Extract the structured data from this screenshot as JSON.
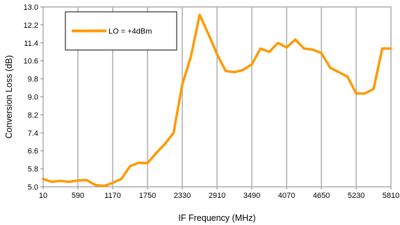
{
  "chart_data": {
    "type": "line",
    "xlabel": "IF Frequency (MHz)",
    "ylabel": "Conversion Loss (dB)",
    "xlim": [
      10,
      5810
    ],
    "ylim": [
      5.0,
      13.0
    ],
    "x_ticks": [
      "10",
      "590",
      "1170",
      "1750",
      "2330",
      "2910",
      "3490",
      "4070",
      "4650",
      "5230",
      "5810"
    ],
    "y_ticks": [
      "5.0",
      "5.8",
      "6.6",
      "7.4",
      "8.2",
      "9.0",
      "9.8",
      "10.6",
      "11.4",
      "12.2",
      "13.0"
    ],
    "grid": "vertical",
    "legend_position": "top-left",
    "series": [
      {
        "name": "LO = +4dBm",
        "color": "#FF9900",
        "x": [
          10,
          155,
          300,
          445,
          590,
          735,
          880,
          1025,
          1170,
          1315,
          1460,
          1605,
          1750,
          1895,
          2040,
          2185,
          2330,
          2475,
          2620,
          2765,
          2910,
          3055,
          3200,
          3345,
          3490,
          3635,
          3780,
          3925,
          4070,
          4215,
          4360,
          4505,
          4650,
          4795,
          4940,
          5085,
          5230,
          5375,
          5520,
          5665,
          5810
        ],
        "y": [
          5.35,
          5.22,
          5.27,
          5.22,
          5.28,
          5.3,
          5.08,
          5.03,
          5.18,
          5.35,
          5.92,
          6.07,
          6.05,
          6.5,
          6.9,
          7.4,
          9.55,
          10.8,
          12.65,
          11.8,
          10.9,
          10.15,
          10.1,
          10.2,
          10.45,
          11.15,
          11.0,
          11.4,
          11.2,
          11.55,
          11.15,
          11.1,
          10.95,
          10.3,
          10.1,
          9.9,
          9.15,
          9.15,
          9.35,
          11.15,
          11.15
        ]
      }
    ]
  }
}
